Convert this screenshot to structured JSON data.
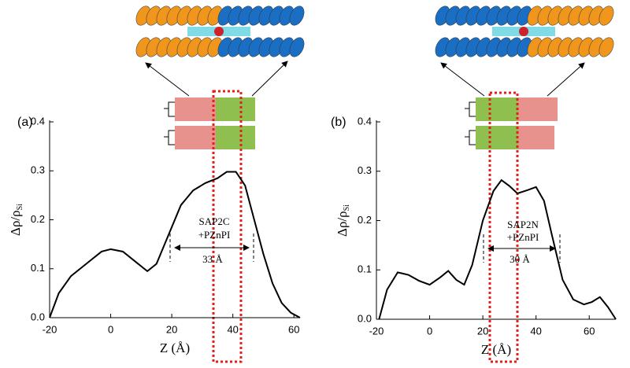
{
  "chart_data": [
    {
      "type": "line",
      "panel": "(a)",
      "y_label": "Δρ/ρ",
      "y_label_sub": "Si",
      "x_label": "Z (Å)",
      "annotations": [
        "SAP2C",
        "+PZnPI",
        "33 Å"
      ],
      "color": "#000000",
      "x": [
        -20,
        -17,
        -13,
        -8,
        -3,
        0,
        4,
        8,
        12,
        15,
        19,
        23,
        27,
        31,
        35,
        38,
        41,
        44,
        47,
        50,
        53,
        56,
        59,
        62
      ],
      "values": [
        0,
        0.05,
        0.085,
        0.11,
        0.135,
        0.14,
        0.135,
        0.115,
        0.095,
        0.11,
        0.17,
        0.23,
        0.26,
        0.275,
        0.285,
        0.298,
        0.298,
        0.27,
        0.2,
        0.13,
        0.07,
        0.03,
        0.01,
        0
      ],
      "xlim": [
        -20,
        62
      ],
      "ylim": [
        0,
        0.4
      ],
      "xticks": [
        -20,
        0,
        20,
        40,
        60
      ],
      "yticks": [
        {
          "value": 0,
          "label": "0.0"
        },
        0.1,
        0.2,
        0.3,
        0.4
      ]
    },
    {
      "type": "line",
      "panel": "(b)",
      "y_label": "Δρ/ρ",
      "y_label_sub": "Si",
      "x_label": "Z (Å)",
      "annotations": [
        "SAP2N",
        "+PZnPI",
        "30 Å"
      ],
      "color": "#000000",
      "x": [
        -19,
        -16,
        -12,
        -8,
        -4,
        0,
        4,
        7,
        10,
        13,
        16,
        20,
        24,
        27,
        30,
        33,
        37,
        40,
        43,
        46,
        50,
        54,
        58,
        61,
        64,
        67,
        70
      ],
      "values": [
        0,
        0.06,
        0.095,
        0.09,
        0.078,
        0.07,
        0.085,
        0.098,
        0.08,
        0.07,
        0.11,
        0.2,
        0.26,
        0.282,
        0.27,
        0.255,
        0.262,
        0.268,
        0.24,
        0.17,
        0.08,
        0.04,
        0.03,
        0.035,
        0.045,
        0.025,
        0
      ],
      "xlim": [
        -20,
        70
      ],
      "ylim": [
        0,
        0.4
      ],
      "xticks": [
        -20,
        0,
        20,
        40,
        60
      ],
      "yticks": [
        {
          "value": 0,
          "label": "0.0"
        },
        0.1,
        0.2,
        0.3,
        0.4
      ]
    }
  ]
}
